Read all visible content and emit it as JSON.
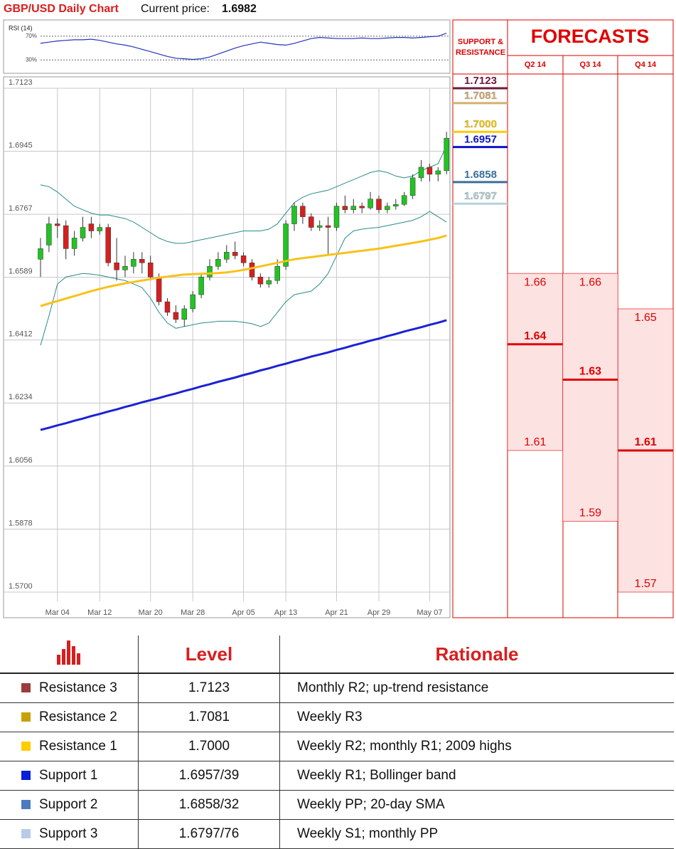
{
  "header": {
    "title": "GBP/USD Daily Chart",
    "price_label": "Current price:",
    "price": "1.6982"
  },
  "chart_data": [
    {
      "type": "candlestick",
      "categories": [
        null,
        null,
        "Mar 04",
        null,
        null,
        null,
        null,
        "Mar 12",
        null,
        null,
        null,
        null,
        null,
        "Mar 20",
        null,
        null,
        null,
        null,
        "Mar 28",
        null,
        null,
        null,
        null,
        null,
        "Apr 05",
        null,
        null,
        null,
        null,
        "Apr 13",
        null,
        null,
        null,
        null,
        null,
        "Apr 21",
        null,
        null,
        null,
        null,
        "Apr 29",
        null,
        null,
        null,
        null,
        null,
        "May 07",
        null,
        null
      ],
      "open": [
        1.664,
        1.668,
        1.674,
        1.6735,
        1.667,
        1.67,
        1.674,
        1.672,
        1.673,
        1.663,
        1.661,
        1.662,
        1.664,
        1.663,
        1.659,
        1.652,
        1.649,
        1.647,
        1.65,
        1.654,
        1.659,
        1.662,
        1.664,
        1.666,
        1.665,
        1.663,
        1.659,
        1.657,
        1.658,
        1.662,
        1.674,
        1.679,
        1.676,
        1.673,
        1.6735,
        1.673,
        1.679,
        1.678,
        1.679,
        1.6785,
        1.681,
        1.678,
        1.679,
        1.6795,
        1.682,
        1.687,
        1.69,
        1.688,
        1.689
      ],
      "high": [
        1.67,
        1.676,
        1.6755,
        1.675,
        1.672,
        1.676,
        1.676,
        1.674,
        1.674,
        1.67,
        1.665,
        1.666,
        1.666,
        1.665,
        1.66,
        1.653,
        1.651,
        1.651,
        1.655,
        1.66,
        1.664,
        1.666,
        1.668,
        1.669,
        1.666,
        1.664,
        1.66,
        1.659,
        1.664,
        1.675,
        1.68,
        1.68,
        1.677,
        1.675,
        1.676,
        1.68,
        1.682,
        1.681,
        1.68,
        1.683,
        1.682,
        1.68,
        1.681,
        1.683,
        1.688,
        1.692,
        1.691,
        1.69,
        1.7
      ],
      "low": [
        1.659,
        1.666,
        1.67,
        1.664,
        1.665,
        1.669,
        1.67,
        1.671,
        1.662,
        1.658,
        1.659,
        1.66,
        1.66,
        1.658,
        1.651,
        1.648,
        1.646,
        1.645,
        1.649,
        1.653,
        1.658,
        1.661,
        1.663,
        1.664,
        1.662,
        1.658,
        1.656,
        1.656,
        1.657,
        1.661,
        1.672,
        1.674,
        1.672,
        1.672,
        1.665,
        1.672,
        1.677,
        1.677,
        1.677,
        1.678,
        1.677,
        1.677,
        1.678,
        1.679,
        1.681,
        1.686,
        1.686,
        1.686,
        1.688
      ],
      "close": [
        1.667,
        1.674,
        1.6735,
        1.667,
        1.67,
        1.673,
        1.672,
        1.673,
        1.663,
        1.661,
        1.662,
        1.664,
        1.663,
        1.659,
        1.652,
        1.649,
        1.647,
        1.65,
        1.654,
        1.659,
        1.662,
        1.664,
        1.666,
        1.665,
        1.663,
        1.659,
        1.657,
        1.658,
        1.662,
        1.674,
        1.679,
        1.676,
        1.673,
        1.6735,
        1.673,
        1.679,
        1.678,
        1.679,
        1.6785,
        1.681,
        1.678,
        1.679,
        1.6795,
        1.682,
        1.687,
        1.69,
        1.688,
        1.689,
        1.6982
      ],
      "up_color": "#22c322",
      "down_color": "#d42020",
      "moving_averages": [
        {
          "color": "#f7c21a",
          "values": [
            1.6508,
            1.6515,
            1.6522,
            1.6529,
            1.6536,
            1.6543,
            1.655,
            1.6556,
            1.6562,
            1.6567,
            1.6572,
            1.6576,
            1.658,
            1.6584,
            1.6588,
            1.6591,
            1.6594,
            1.6597,
            1.6598,
            1.6599,
            1.66,
            1.6601,
            1.6603,
            1.6606,
            1.661,
            1.6615,
            1.662,
            1.6625,
            1.663,
            1.6635,
            1.664,
            1.6643,
            1.6646,
            1.6649,
            1.6652,
            1.6655,
            1.6658,
            1.6661,
            1.6664,
            1.6667,
            1.667,
            1.6674,
            1.6678,
            1.6682,
            1.6686,
            1.669,
            1.6695,
            1.67,
            1.6707
          ]
        },
        {
          "color": "#1b22d4",
          "values": [
            1.6158,
            1.6164,
            1.6171,
            1.6177,
            1.6184,
            1.619,
            1.6197,
            1.6203,
            1.621,
            1.6216,
            1.6223,
            1.6229,
            1.6236,
            1.6242,
            1.6248,
            1.6255,
            1.6261,
            1.6268,
            1.6274,
            1.6281,
            1.6287,
            1.6294,
            1.63,
            1.6306,
            1.6313,
            1.6319,
            1.6326,
            1.6332,
            1.6339,
            1.6345,
            1.6352,
            1.6358,
            1.6365,
            1.6371,
            1.6377,
            1.6384,
            1.639,
            1.6397,
            1.6403,
            1.641,
            1.6416,
            1.6423,
            1.6429,
            1.6436,
            1.6442,
            1.6448,
            1.6455,
            1.6461,
            1.6468
          ]
        }
      ],
      "bollinger_bands": [
        {
          "color": "#2a8a8a",
          "values": [
            1.685,
            1.6845,
            1.683,
            1.681,
            1.679,
            1.678,
            1.677,
            1.6765,
            1.6765,
            1.676,
            1.6755,
            1.6745,
            1.673,
            1.6715,
            1.67,
            1.669,
            1.6685,
            1.6685,
            1.669,
            1.6695,
            1.67,
            1.6705,
            1.671,
            1.6715,
            1.672,
            1.672,
            1.672,
            1.6725,
            1.674,
            1.677,
            1.68,
            1.6815,
            1.6825,
            1.683,
            1.6835,
            1.6845,
            1.6855,
            1.6865,
            1.6875,
            1.6885,
            1.689,
            1.6885,
            1.6875,
            1.687,
            1.6875,
            1.689,
            1.69,
            1.691,
            1.696
          ]
        },
        {
          "color": "#2a8a8a",
          "values": [
            1.6397,
            1.648,
            1.657,
            1.659,
            1.6595,
            1.66,
            1.6598,
            1.6595,
            1.659,
            1.6585,
            1.658,
            1.657,
            1.656,
            1.653,
            1.649,
            1.646,
            1.6445,
            1.645,
            1.6455,
            1.646,
            1.6462,
            1.6465,
            1.6465,
            1.6465,
            1.6462,
            1.6458,
            1.645,
            1.646,
            1.649,
            1.652,
            1.654,
            1.6545,
            1.655,
            1.657,
            1.66,
            1.665,
            1.67,
            1.672,
            1.6725,
            1.6728,
            1.673,
            1.6735,
            1.674,
            1.6745,
            1.675,
            1.676,
            1.6775,
            1.676,
            1.6745
          ]
        }
      ],
      "ylim": [
        1.57,
        1.7123
      ],
      "yticks": [
        1.7123,
        1.6945,
        1.6767,
        1.6589,
        1.6412,
        1.6234,
        1.6056,
        1.5878,
        {
          "value": 1.57,
          "label": "1.5700"
        }
      ],
      "grid": true
    },
    {
      "type": "line",
      "title": "RSI (14)",
      "ylim": [
        10,
        95
      ],
      "yticks": [
        {
          "value": 70,
          "label": "70%"
        },
        {
          "value": 30,
          "label": "30%"
        }
      ],
      "series": [
        {
          "color": "#2233bb",
          "values": [
            58,
            60,
            62,
            63,
            64,
            64,
            65,
            63,
            60,
            57,
            55,
            52,
            48,
            44,
            40,
            36,
            33,
            32,
            31,
            32,
            35,
            40,
            45,
            50,
            54,
            57,
            60,
            58,
            56,
            55,
            58,
            62,
            66,
            68,
            67,
            66,
            66,
            66,
            67,
            66,
            66,
            67,
            68,
            68,
            67,
            68,
            69,
            70,
            75
          ]
        }
      ]
    },
    {
      "type": "range",
      "title": "FORECASTS",
      "levels_title": "SUPPORT & RESISTANCE",
      "ylim": [
        1.57,
        1.7123
      ],
      "levels": [
        {
          "value": 1.7123,
          "color": "#6b1b3b"
        },
        {
          "value": 1.7081,
          "color": "#d4b070"
        },
        {
          "value": 1.7,
          "label": "1.7000",
          "color": "#ffcc00"
        },
        {
          "value": 1.6957,
          "color": "#0a14c8"
        },
        {
          "value": 1.6858,
          "color": "#3a6f9a"
        },
        {
          "value": 1.6797,
          "color": "#b5d3dc"
        }
      ],
      "categories": [
        "Q2 14",
        "Q3 14",
        "Q4 14"
      ],
      "high": [
        1.66,
        1.66,
        1.65
      ],
      "mid": [
        1.64,
        1.63,
        1.61
      ],
      "low": [
        1.61,
        1.59,
        1.57
      ],
      "color": "#e00000",
      "fill": "#fde2e2"
    }
  ],
  "table": {
    "header": [
      "Level",
      "Rationale"
    ],
    "rows": [
      {
        "color": "#9b3b3b",
        "name": "Resistance 3",
        "level": "1.7123",
        "rationale": "Monthly R2; up-trend resistance"
      },
      {
        "color": "#c8a006",
        "name": "Resistance 2",
        "level": "1.7081",
        "rationale": "Weekly R3"
      },
      {
        "color": "#ffcc00",
        "name": "Resistance 1",
        "level": "1.7000",
        "rationale": "Weekly R2; monthly R1; 2009 highs"
      },
      {
        "color": "#0a1fd8",
        "name": "Support 1",
        "level": "1.6957/39",
        "rationale": "Weekly R1; Bollinger band"
      },
      {
        "color": "#4a7bbf",
        "name": "Support 2",
        "level": "1.6858/32",
        "rationale": "Weekly PP; 20-day SMA"
      },
      {
        "color": "#b8cbe6",
        "name": "Support 3",
        "level": "1.6797/76",
        "rationale": "Weekly S1; monthly PP"
      }
    ]
  }
}
